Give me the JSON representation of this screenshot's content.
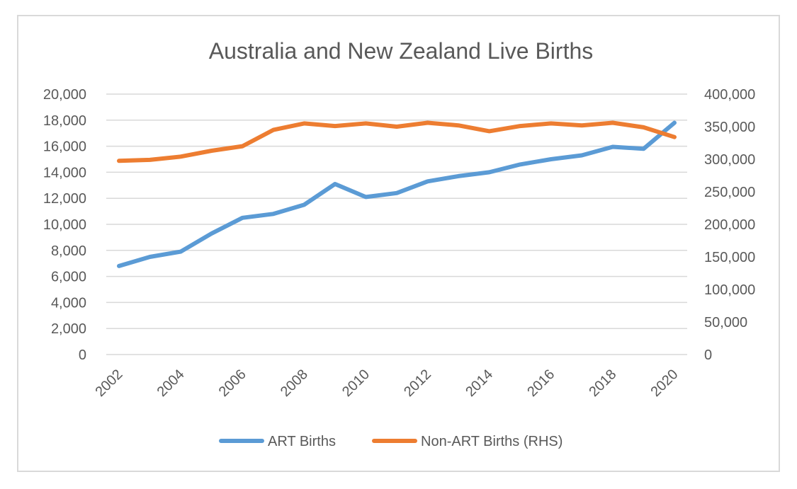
{
  "chart_data": {
    "type": "line",
    "title": "Australia and New Zealand Live Births",
    "x": [
      2002,
      2003,
      2004,
      2005,
      2006,
      2007,
      2008,
      2009,
      2010,
      2011,
      2012,
      2013,
      2014,
      2015,
      2016,
      2017,
      2018,
      2019,
      2020
    ],
    "x_tick_labels": [
      "2002",
      "2004",
      "2006",
      "2008",
      "2010",
      "2012",
      "2014",
      "2016",
      "2018",
      "2020"
    ],
    "y_left": {
      "ylim": [
        0,
        20000
      ],
      "ticks": [
        "0",
        "2,000",
        "4,000",
        "6,000",
        "8,000",
        "10,000",
        "12,000",
        "14,000",
        "16,000",
        "18,000",
        "20,000"
      ]
    },
    "y_right": {
      "ylim": [
        0,
        400000
      ],
      "ticks": [
        "0",
        "50,000",
        "100,000",
        "150,000",
        "200,000",
        "250,000",
        "300,000",
        "350,000",
        "400,000"
      ]
    },
    "grid": true,
    "legend_position": "bottom",
    "series": [
      {
        "name": "ART Births",
        "axis": "left",
        "color": "#5b9bd5",
        "values": [
          6800,
          7500,
          7900,
          9300,
          10500,
          10800,
          11500,
          13100,
          12100,
          12400,
          13300,
          13700,
          14000,
          14600,
          15000,
          15300,
          15950,
          15800,
          17800
        ]
      },
      {
        "name": "Non-ART Births (RHS)",
        "axis": "right",
        "color": "#ed7d31",
        "values": [
          297500,
          299000,
          304000,
          313000,
          320000,
          345000,
          355000,
          351000,
          355000,
          350000,
          356000,
          352000,
          343000,
          351000,
          355000,
          352000,
          356000,
          349000,
          334000
        ]
      }
    ]
  }
}
